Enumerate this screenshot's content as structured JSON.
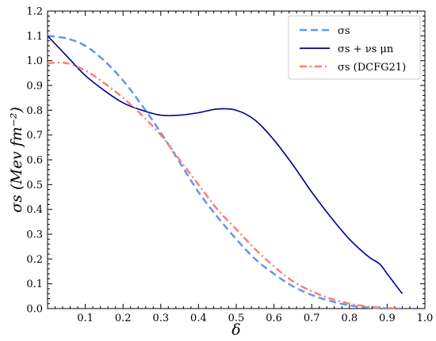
{
  "chart_data": {
    "type": "line",
    "xlabel": "δ",
    "ylabel": "σs (Mev fm⁻²)",
    "xlim": [
      0.0,
      1.0
    ],
    "ylim": [
      0.0,
      1.2
    ],
    "xticks": [
      "0.1",
      "0.2",
      "0.3",
      "0.4",
      "0.5",
      "0.6",
      "0.7",
      "0.8",
      "0.9",
      "1.0"
    ],
    "yticks": [
      "0.0",
      "0.1",
      "0.2",
      "0.3",
      "0.4",
      "0.5",
      "0.6",
      "0.7",
      "0.8",
      "0.9",
      "1.0",
      "1.1",
      "1.2"
    ],
    "grid": false,
    "legend_position": "top-right",
    "series": [
      {
        "name": "σs",
        "color": "#6495ED",
        "style": "dashed",
        "x": [
          0.0,
          0.05,
          0.1,
          0.15,
          0.2,
          0.25,
          0.3,
          0.35,
          0.4,
          0.45,
          0.5,
          0.55,
          0.6,
          0.65,
          0.7,
          0.75,
          0.8,
          0.85,
          0.9,
          0.94
        ],
        "y": [
          1.1,
          1.09,
          1.06,
          1.0,
          0.92,
          0.82,
          0.71,
          0.59,
          0.47,
          0.37,
          0.28,
          0.2,
          0.14,
          0.09,
          0.055,
          0.03,
          0.013,
          0.004,
          0.0005,
          0.0
        ]
      },
      {
        "name": "σs + νs μn",
        "color": "#00008B",
        "style": "solid",
        "x": [
          0.0,
          0.05,
          0.1,
          0.15,
          0.2,
          0.25,
          0.3,
          0.35,
          0.4,
          0.45,
          0.5,
          0.55,
          0.6,
          0.65,
          0.7,
          0.75,
          0.8,
          0.85,
          0.88,
          0.9,
          0.92,
          0.94
        ],
        "y": [
          1.1,
          1.02,
          0.94,
          0.88,
          0.83,
          0.8,
          0.78,
          0.78,
          0.79,
          0.805,
          0.8,
          0.76,
          0.68,
          0.58,
          0.47,
          0.37,
          0.28,
          0.21,
          0.18,
          0.14,
          0.1,
          0.06
        ]
      },
      {
        "name": "σs (DCFG21)",
        "color": "#FA8072",
        "style": "dashdot",
        "x": [
          0.0,
          0.05,
          0.1,
          0.15,
          0.2,
          0.25,
          0.3,
          0.35,
          0.4,
          0.45,
          0.5,
          0.55,
          0.6,
          0.65,
          0.7,
          0.75,
          0.8,
          0.85,
          0.9,
          0.94
        ],
        "y": [
          0.99,
          0.99,
          0.96,
          0.91,
          0.85,
          0.78,
          0.7,
          0.6,
          0.5,
          0.4,
          0.32,
          0.24,
          0.17,
          0.11,
          0.07,
          0.04,
          0.02,
          0.008,
          0.002,
          0.0
        ]
      }
    ]
  }
}
